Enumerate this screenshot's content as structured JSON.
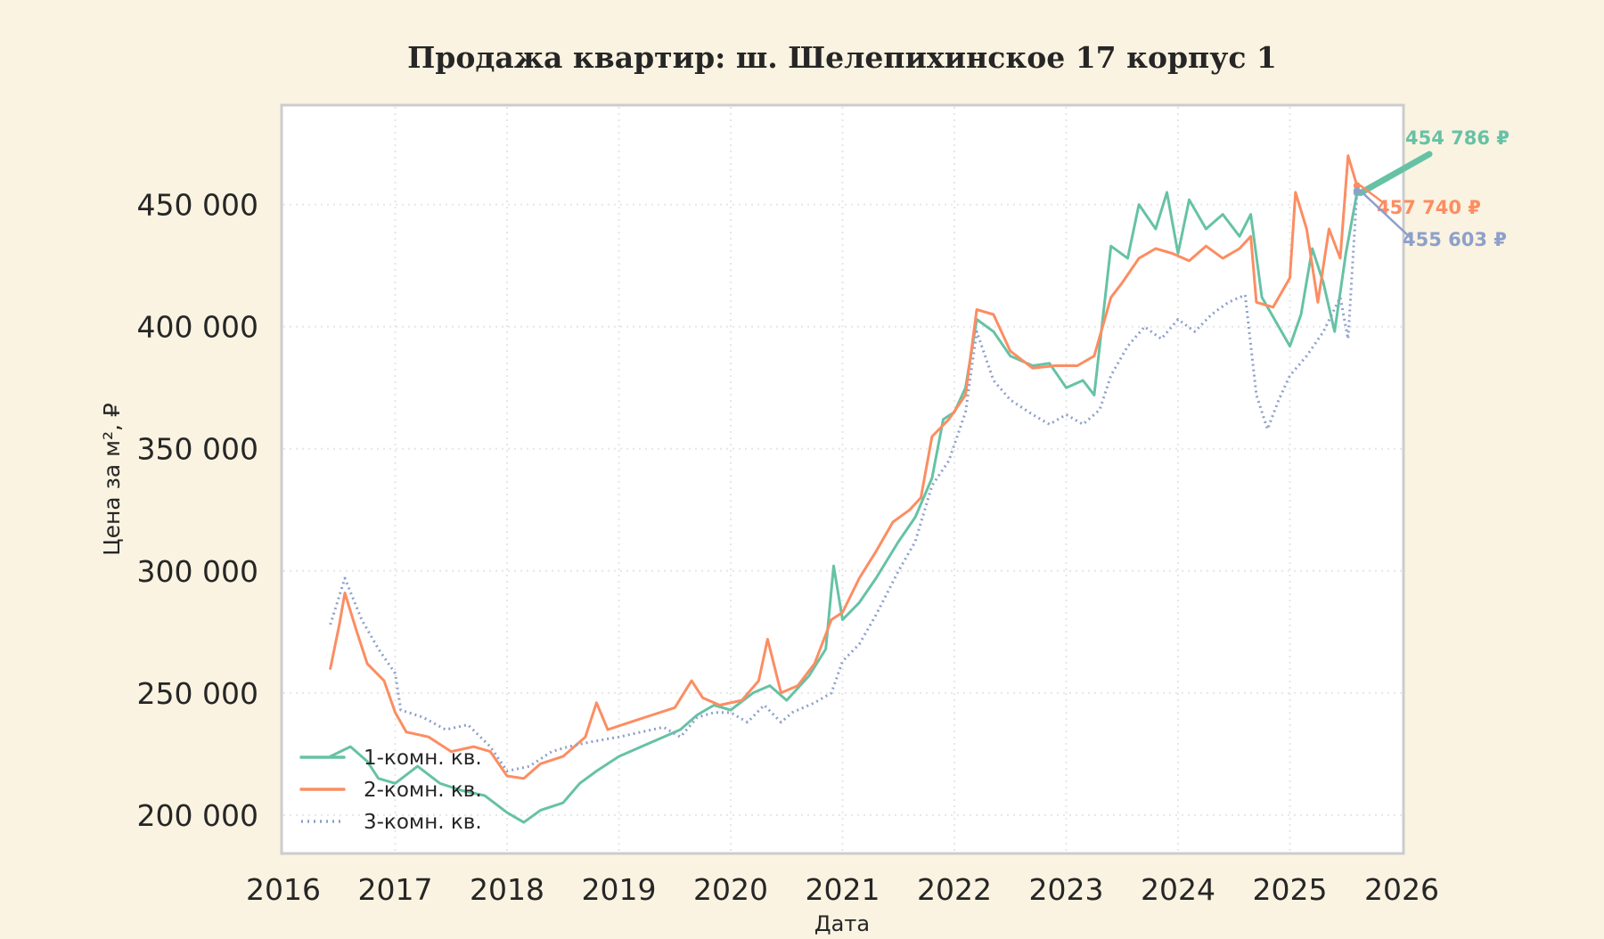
{
  "chart_data": {
    "type": "line",
    "title": "Продажа квартир: ш. Шелепихинское 17 корпус 1",
    "xlabel": "Дата",
    "ylabel": "Цена за м², ₽",
    "xlim": [
      2016.0,
      2026.0
    ],
    "ylim": [
      185000,
      490000
    ],
    "x_ticks": [
      2016,
      2017,
      2018,
      2019,
      2020,
      2021,
      2022,
      2023,
      2024,
      2025,
      2026
    ],
    "y_ticks": [
      200000,
      250000,
      300000,
      350000,
      400000,
      450000
    ],
    "y_tick_labels": [
      "200 000",
      "250 000",
      "300 000",
      "350 000",
      "400 000",
      "450 000"
    ],
    "grid": true,
    "legend_position": "lower-left",
    "background": "#faf3e1",
    "series": [
      {
        "name": "1-комн. кв.",
        "color": "#66c2a5",
        "style": "solid",
        "last_label": "454 786 ₽",
        "points": [
          [
            2016.42,
            224000
          ],
          [
            2016.6,
            228000
          ],
          [
            2016.75,
            222000
          ],
          [
            2016.85,
            215000
          ],
          [
            2017.0,
            213000
          ],
          [
            2017.2,
            220000
          ],
          [
            2017.4,
            213000
          ],
          [
            2017.6,
            210000
          ],
          [
            2017.8,
            208000
          ],
          [
            2018.0,
            201000
          ],
          [
            2018.15,
            197000
          ],
          [
            2018.3,
            202000
          ],
          [
            2018.5,
            205000
          ],
          [
            2018.65,
            213000
          ],
          [
            2018.8,
            218000
          ],
          [
            2019.0,
            224000
          ],
          [
            2019.2,
            228000
          ],
          [
            2019.4,
            232000
          ],
          [
            2019.55,
            235000
          ],
          [
            2019.7,
            241000
          ],
          [
            2019.85,
            245000
          ],
          [
            2020.0,
            243000
          ],
          [
            2020.2,
            250000
          ],
          [
            2020.35,
            253000
          ],
          [
            2020.5,
            247000
          ],
          [
            2020.7,
            257000
          ],
          [
            2020.85,
            268000
          ],
          [
            2020.92,
            302000
          ],
          [
            2021.0,
            280000
          ],
          [
            2021.15,
            287000
          ],
          [
            2021.3,
            297000
          ],
          [
            2021.5,
            312000
          ],
          [
            2021.65,
            322000
          ],
          [
            2021.8,
            338000
          ],
          [
            2021.9,
            362000
          ],
          [
            2022.0,
            365000
          ],
          [
            2022.1,
            375000
          ],
          [
            2022.2,
            403000
          ],
          [
            2022.35,
            398000
          ],
          [
            2022.5,
            388000
          ],
          [
            2022.7,
            384000
          ],
          [
            2022.85,
            385000
          ],
          [
            2023.0,
            375000
          ],
          [
            2023.15,
            378000
          ],
          [
            2023.25,
            372000
          ],
          [
            2023.4,
            433000
          ],
          [
            2023.55,
            428000
          ],
          [
            2023.65,
            450000
          ],
          [
            2023.8,
            440000
          ],
          [
            2023.9,
            455000
          ],
          [
            2024.0,
            430000
          ],
          [
            2024.1,
            452000
          ],
          [
            2024.25,
            440000
          ],
          [
            2024.4,
            446000
          ],
          [
            2024.55,
            437000
          ],
          [
            2024.65,
            446000
          ],
          [
            2024.75,
            412000
          ],
          [
            2024.9,
            400000
          ],
          [
            2025.0,
            392000
          ],
          [
            2025.1,
            405000
          ],
          [
            2025.2,
            432000
          ],
          [
            2025.3,
            418000
          ],
          [
            2025.4,
            398000
          ],
          [
            2025.5,
            430000
          ],
          [
            2025.6,
            454786
          ]
        ]
      },
      {
        "name": "2-комн. кв.",
        "color": "#fc8d62",
        "style": "solid",
        "last_label": "457 740 ₽",
        "points": [
          [
            2016.42,
            260000
          ],
          [
            2016.5,
            278000
          ],
          [
            2016.55,
            291000
          ],
          [
            2016.65,
            276000
          ],
          [
            2016.75,
            262000
          ],
          [
            2016.9,
            255000
          ],
          [
            2017.0,
            242000
          ],
          [
            2017.1,
            234000
          ],
          [
            2017.3,
            232000
          ],
          [
            2017.5,
            226000
          ],
          [
            2017.7,
            228000
          ],
          [
            2017.85,
            226000
          ],
          [
            2018.0,
            216000
          ],
          [
            2018.15,
            215000
          ],
          [
            2018.3,
            221000
          ],
          [
            2018.5,
            224000
          ],
          [
            2018.7,
            232000
          ],
          [
            2018.8,
            246000
          ],
          [
            2018.9,
            235000
          ],
          [
            2019.1,
            238000
          ],
          [
            2019.3,
            241000
          ],
          [
            2019.5,
            244000
          ],
          [
            2019.65,
            255000
          ],
          [
            2019.75,
            248000
          ],
          [
            2019.9,
            245000
          ],
          [
            2020.1,
            247000
          ],
          [
            2020.25,
            255000
          ],
          [
            2020.33,
            272000
          ],
          [
            2020.45,
            250000
          ],
          [
            2020.6,
            253000
          ],
          [
            2020.75,
            262000
          ],
          [
            2020.9,
            280000
          ],
          [
            2021.0,
            283000
          ],
          [
            2021.15,
            297000
          ],
          [
            2021.3,
            308000
          ],
          [
            2021.45,
            320000
          ],
          [
            2021.6,
            325000
          ],
          [
            2021.7,
            330000
          ],
          [
            2021.8,
            355000
          ],
          [
            2021.95,
            362000
          ],
          [
            2022.1,
            372000
          ],
          [
            2022.2,
            407000
          ],
          [
            2022.35,
            405000
          ],
          [
            2022.5,
            390000
          ],
          [
            2022.7,
            383000
          ],
          [
            2022.9,
            384000
          ],
          [
            2023.1,
            384000
          ],
          [
            2023.25,
            388000
          ],
          [
            2023.4,
            412000
          ],
          [
            2023.5,
            418000
          ],
          [
            2023.65,
            428000
          ],
          [
            2023.8,
            432000
          ],
          [
            2023.95,
            430000
          ],
          [
            2024.1,
            427000
          ],
          [
            2024.25,
            433000
          ],
          [
            2024.4,
            428000
          ],
          [
            2024.55,
            432000
          ],
          [
            2024.65,
            437000
          ],
          [
            2024.7,
            410000
          ],
          [
            2024.85,
            408000
          ],
          [
            2025.0,
            420000
          ],
          [
            2025.05,
            455000
          ],
          [
            2025.15,
            440000
          ],
          [
            2025.25,
            410000
          ],
          [
            2025.35,
            440000
          ],
          [
            2025.45,
            428000
          ],
          [
            2025.52,
            470000
          ],
          [
            2025.6,
            457740
          ]
        ]
      },
      {
        "name": "3-комн. кв.",
        "color": "#8da0cb",
        "style": "dotted",
        "last_label": "455 603 ₽",
        "points": [
          [
            2016.42,
            278000
          ],
          [
            2016.55,
            297000
          ],
          [
            2016.7,
            280000
          ],
          [
            2016.85,
            268000
          ],
          [
            2017.0,
            258000
          ],
          [
            2017.05,
            243000
          ],
          [
            2017.25,
            240000
          ],
          [
            2017.45,
            235000
          ],
          [
            2017.65,
            237000
          ],
          [
            2017.85,
            228000
          ],
          [
            2018.0,
            218000
          ],
          [
            2018.2,
            220000
          ],
          [
            2018.4,
            226000
          ],
          [
            2018.55,
            228000
          ],
          [
            2018.75,
            230000
          ],
          [
            2019.0,
            232000
          ],
          [
            2019.2,
            234000
          ],
          [
            2019.4,
            236000
          ],
          [
            2019.55,
            232000
          ],
          [
            2019.7,
            240000
          ],
          [
            2019.85,
            242000
          ],
          [
            2020.0,
            242000
          ],
          [
            2020.15,
            238000
          ],
          [
            2020.3,
            245000
          ],
          [
            2020.45,
            238000
          ],
          [
            2020.55,
            242000
          ],
          [
            2020.75,
            246000
          ],
          [
            2020.9,
            250000
          ],
          [
            2021.0,
            263000
          ],
          [
            2021.15,
            270000
          ],
          [
            2021.3,
            282000
          ],
          [
            2021.5,
            300000
          ],
          [
            2021.65,
            312000
          ],
          [
            2021.8,
            335000
          ],
          [
            2021.95,
            345000
          ],
          [
            2022.1,
            365000
          ],
          [
            2022.2,
            398000
          ],
          [
            2022.35,
            378000
          ],
          [
            2022.5,
            370000
          ],
          [
            2022.7,
            364000
          ],
          [
            2022.85,
            360000
          ],
          [
            2023.0,
            364000
          ],
          [
            2023.15,
            360000
          ],
          [
            2023.3,
            366000
          ],
          [
            2023.4,
            380000
          ],
          [
            2023.55,
            392000
          ],
          [
            2023.7,
            400000
          ],
          [
            2023.85,
            395000
          ],
          [
            2024.0,
            403000
          ],
          [
            2024.15,
            398000
          ],
          [
            2024.3,
            405000
          ],
          [
            2024.45,
            410000
          ],
          [
            2024.6,
            413000
          ],
          [
            2024.7,
            372000
          ],
          [
            2024.8,
            358000
          ],
          [
            2024.9,
            370000
          ],
          [
            2025.0,
            380000
          ],
          [
            2025.15,
            388000
          ],
          [
            2025.3,
            398000
          ],
          [
            2025.45,
            412000
          ],
          [
            2025.52,
            395000
          ],
          [
            2025.6,
            455603
          ]
        ]
      }
    ]
  }
}
